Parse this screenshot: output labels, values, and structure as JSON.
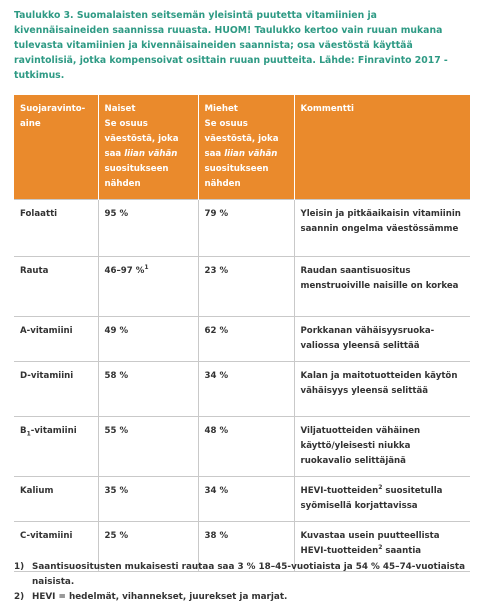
{
  "caption": "Taulukko 3. Suomalaisten seitsemän yleisintä puutetta vitamiinien ja kivennäisaineiden saannissa ruuasta. HUOM! Taulukko kertoo vain ruuan mukana tulevasta vitamiinien ja kivennäisaineiden saannista; osa väestöstä käyttää ravintolisiä, jotka kompensoivat osittain ruuan puutteita. Lähde: Finravinto 2017 -tutkimus.",
  "table": {
    "header": [
      [
        "Suojaravinto-",
        "aine"
      ],
      [
        "Naiset",
        "Se osuus väestöstä, joka saa ",
        "liian vähän",
        " suositukseen nähden"
      ],
      [
        "Miehet",
        "Se osuus väestöstä, joka saa ",
        "liian vähän",
        " suositukseen nähden"
      ],
      [
        "Kommentti"
      ]
    ],
    "rows": [
      [
        [
          "Folaatti"
        ],
        [
          "95 %"
        ],
        [
          "79 %"
        ],
        [
          "Yleisin ja pitkäaikaisin vitamiinin saannin ongelma väestössämme"
        ]
      ],
      [
        [
          "Rauta"
        ],
        [
          "46–97 %",
          "1"
        ],
        [
          "23 %"
        ],
        [
          "Raudan saantisuositus menstruoiville naisille on korkea"
        ]
      ],
      [
        [
          "A-vitamiini"
        ],
        [
          "49 %"
        ],
        [
          "62 %"
        ],
        [
          "Porkkanan vähäisyysruoka-valiossa yleensä selittää"
        ]
      ],
      [
        [
          "D-vitamiini"
        ],
        [
          "58 %"
        ],
        [
          "34 %"
        ],
        [
          "Kalan ja maitotuotteiden käytön vähäisyys yleensä selittää"
        ]
      ],
      [
        [
          "B",
          "1",
          "-vitamiini"
        ],
        [
          "55 %"
        ],
        [
          "48 %"
        ],
        [
          "Viljatuotteiden vähäinen käyttö/yleisesti niukka ruokavalio selittäjänä"
        ]
      ],
      [
        [
          "Kalium"
        ],
        [
          "35 %"
        ],
        [
          "34 %"
        ],
        [
          "HEVI-tuotteiden",
          "2",
          " suositetulla syömisellä korjattavissa"
        ]
      ],
      [
        [
          "C-vitamiini"
        ],
        [
          "25 %"
        ],
        [
          "38 %"
        ],
        [
          "Kuvastaa usein puutteellista HEVI-tuotteiden",
          "2",
          " saantia"
        ]
      ]
    ]
  },
  "footnotes": [
    {
      "marker": "1)",
      "text": "Saantisuositusten mukaisesti rautaa saa 3 % 18–45-vuotiaista ja 54 % 45–74-vuotiaista naisista."
    },
    {
      "marker": "2)",
      "text": "HEVI = hedelmät, vihannekset, juurekset ja marjat."
    }
  ]
}
